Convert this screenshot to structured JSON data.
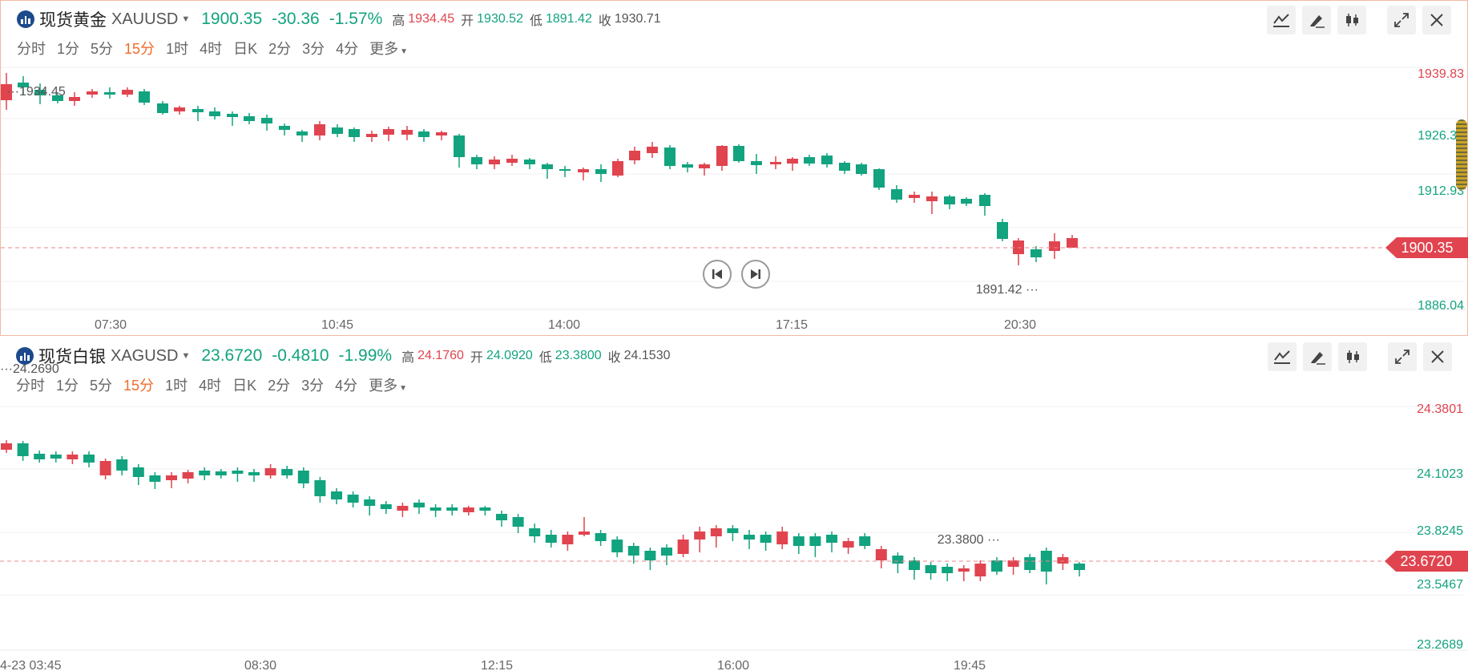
{
  "panels": [
    {
      "name": "现货黄金",
      "code": "XAUUSD",
      "price": "1900.35",
      "change": "-30.36",
      "change_pct": "-1.57%",
      "high_label": "高",
      "high": "1934.45",
      "open_label": "开",
      "open": "1930.52",
      "low_label": "低",
      "low": "1891.42",
      "close_label": "收",
      "close": "1930.71",
      "periods": [
        "分时",
        "1分",
        "5分",
        "15分",
        "1时",
        "4时",
        "日K",
        "2分",
        "3分",
        "4分",
        "更多"
      ],
      "active_period": "15分",
      "y_ticks": [
        {
          "label": "1939.83",
          "color": "#e0444f"
        },
        {
          "label": "1926.38",
          "color": "#12a37f"
        },
        {
          "label": "1912.93",
          "color": "#12a37f"
        },
        {
          "label": "1886.04",
          "color": "#12a37f"
        }
      ],
      "x_ticks": [
        "07:30",
        "10:45",
        "14:00",
        "17:15",
        "20:30"
      ],
      "current_price_label": "1900.35",
      "max_annotation": "1934.45",
      "min_annotation": "1891.42"
    },
    {
      "name": "现货白银",
      "code": "XAGUSD",
      "price": "23.6720",
      "change": "-0.4810",
      "change_pct": "-1.99%",
      "high_label": "高",
      "high": "24.1760",
      "open_label": "开",
      "open": "24.0920",
      "low_label": "低",
      "low": "23.3800",
      "close_label": "收",
      "close": "24.1530",
      "periods": [
        "分时",
        "1分",
        "5分",
        "15分",
        "1时",
        "4时",
        "日K",
        "2分",
        "3分",
        "4分",
        "更多"
      ],
      "active_period": "15分",
      "y_ticks": [
        {
          "label": "24.3801",
          "color": "#e0444f"
        },
        {
          "label": "24.1023",
          "color": "#12a37f"
        },
        {
          "label": "23.8245",
          "color": "#12a37f"
        },
        {
          "label": "23.5467",
          "color": "#12a37f"
        },
        {
          "label": "23.2689",
          "color": "#12a37f"
        }
      ],
      "x_ticks": [
        "4-23 03:45",
        "08:30",
        "12:15",
        "16:00",
        "19:45"
      ],
      "current_price_label": "23.6720",
      "max_annotation": "24.2690",
      "min_annotation": "23.3800"
    }
  ],
  "toolbar_icons": [
    "indicator-icon",
    "draw-icon",
    "candle-style-icon",
    "expand-icon",
    "close-icon"
  ],
  "colors": {
    "up": "#e0444f",
    "down": "#12a37f",
    "active_period": "#f06b2b",
    "grid": "#eeeeee",
    "price_line": "#e8878d"
  }
}
